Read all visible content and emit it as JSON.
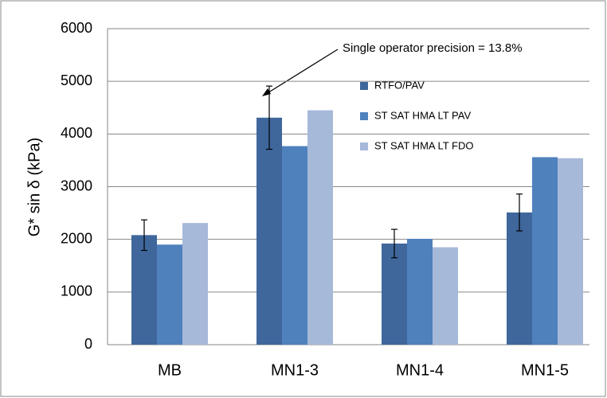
{
  "chart_data": {
    "type": "bar",
    "ylabel": "G* sin δ (kPa)",
    "annotation": "Single operator precision = 13.8%",
    "categories": [
      "MB",
      "MN1-3",
      "MN1-4",
      "MN1-5"
    ],
    "series": [
      {
        "name": "RTFO/PAV",
        "color": "#3f679c",
        "values": [
          2080,
          4310,
          1920,
          2510
        ],
        "errors": [
          290,
          600,
          270,
          350
        ]
      },
      {
        "name": "ST SAT HMA LT PAV",
        "color": "#4f81bd",
        "values": [
          1900,
          3770,
          2010,
          3560
        ]
      },
      {
        "name": "ST SAT HMA LT FDO",
        "color": "#a7b9d9",
        "values": [
          2310,
          4450,
          1850,
          3540
        ]
      }
    ],
    "ylim": [
      0,
      6000
    ],
    "yticks": [
      0,
      1000,
      2000,
      3000,
      4000,
      5000,
      6000
    ],
    "grid": true
  }
}
